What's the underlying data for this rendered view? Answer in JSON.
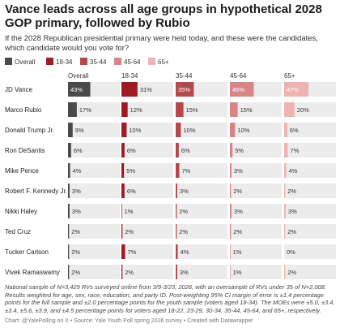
{
  "title": "Vance leads across all age groups in hypothetical 2028 GOP primary, followed by Rubio",
  "subtitle": "If the 2028 Republican presidential primary were held today, and these were the candidates, which candidate would you vote for?",
  "notes": "National sample of N=3,429 RVs surveyed online from 3/9-3/23, 2026, with an oversample of RVs under 35 of N=2,008. Results weighted for age, sex, race, education, and party ID. Post-weighting 95% CI margin of error is ±1.4 percentage points for the full sample and ±2.0 percentage points for the youth sample (voters aged 18-34). The MOEs were ±5.0, ±3.4, ±3.4, ±5.6, ±3.9, and ±4.5 percentage points for voters aged 18-22, 23-29, 30-34, 35-44, 45-64, and 65+, respectively.",
  "credit": "Chart: @YalePolling on X • Source: Yale Youth Poll spring 2026 survey • Created with Datawrapper",
  "chart_data": {
    "type": "bar",
    "xlim": [
      0,
      100
    ],
    "categories": [
      "JD Vance",
      "Marco Rubio",
      "Donald Trump Jr.",
      "Ron DeSantis",
      "Mike Pence",
      "Robert F. Kennedy Jr.",
      "Nikki Haley",
      "Ted Cruz",
      "Tucker Carlson",
      "Vivek Ramaswamy"
    ],
    "series": [
      {
        "name": "Overall",
        "color": "#4a4a4a",
        "values": [
          43,
          17,
          9,
          6,
          4,
          3,
          3,
          2,
          2,
          2
        ]
      },
      {
        "name": "18-34",
        "color": "#9e1b23",
        "values": [
          31,
          12,
          10,
          6,
          5,
          6,
          1,
          2,
          7,
          2
        ]
      },
      {
        "name": "35-44",
        "color": "#b6474c",
        "values": [
          35,
          15,
          10,
          6,
          7,
          3,
          2,
          2,
          4,
          3
        ]
      },
      {
        "name": "45-64",
        "color": "#d98587",
        "values": [
          46,
          15,
          10,
          5,
          3,
          2,
          3,
          2,
          1,
          1
        ]
      },
      {
        "name": "65+",
        "color": "#f0b2b2",
        "values": [
          47,
          20,
          6,
          7,
          4,
          2,
          3,
          2,
          0,
          2
        ]
      }
    ]
  }
}
